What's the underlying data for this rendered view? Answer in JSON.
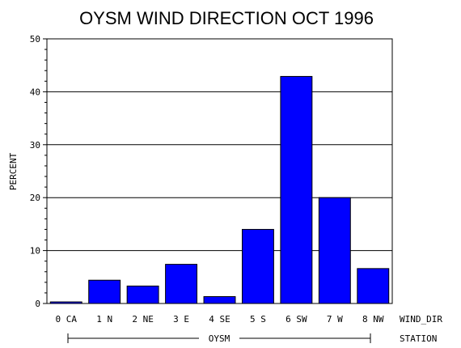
{
  "chart_data": {
    "type": "bar",
    "title": "OYSM WIND DIRECTION OCT 1996",
    "ylabel": "PERCENT",
    "xlabel": "WIND_DIR",
    "group_axis_label": "STATION",
    "group_name": "OYSM",
    "ylim": [
      0,
      50
    ],
    "yticks": [
      "0",
      "10",
      "20",
      "30",
      "40",
      "50"
    ],
    "grid": true,
    "bar_color": "#0000ff",
    "categories": [
      "0 CA",
      "1 N",
      "2 NE",
      "3 E",
      "4 SE",
      "5 S",
      "6 SW",
      "7 W",
      "8 NW"
    ],
    "values": [
      0.3,
      4.4,
      3.3,
      7.4,
      1.3,
      14.0,
      42.9,
      20.0,
      6.6
    ]
  }
}
